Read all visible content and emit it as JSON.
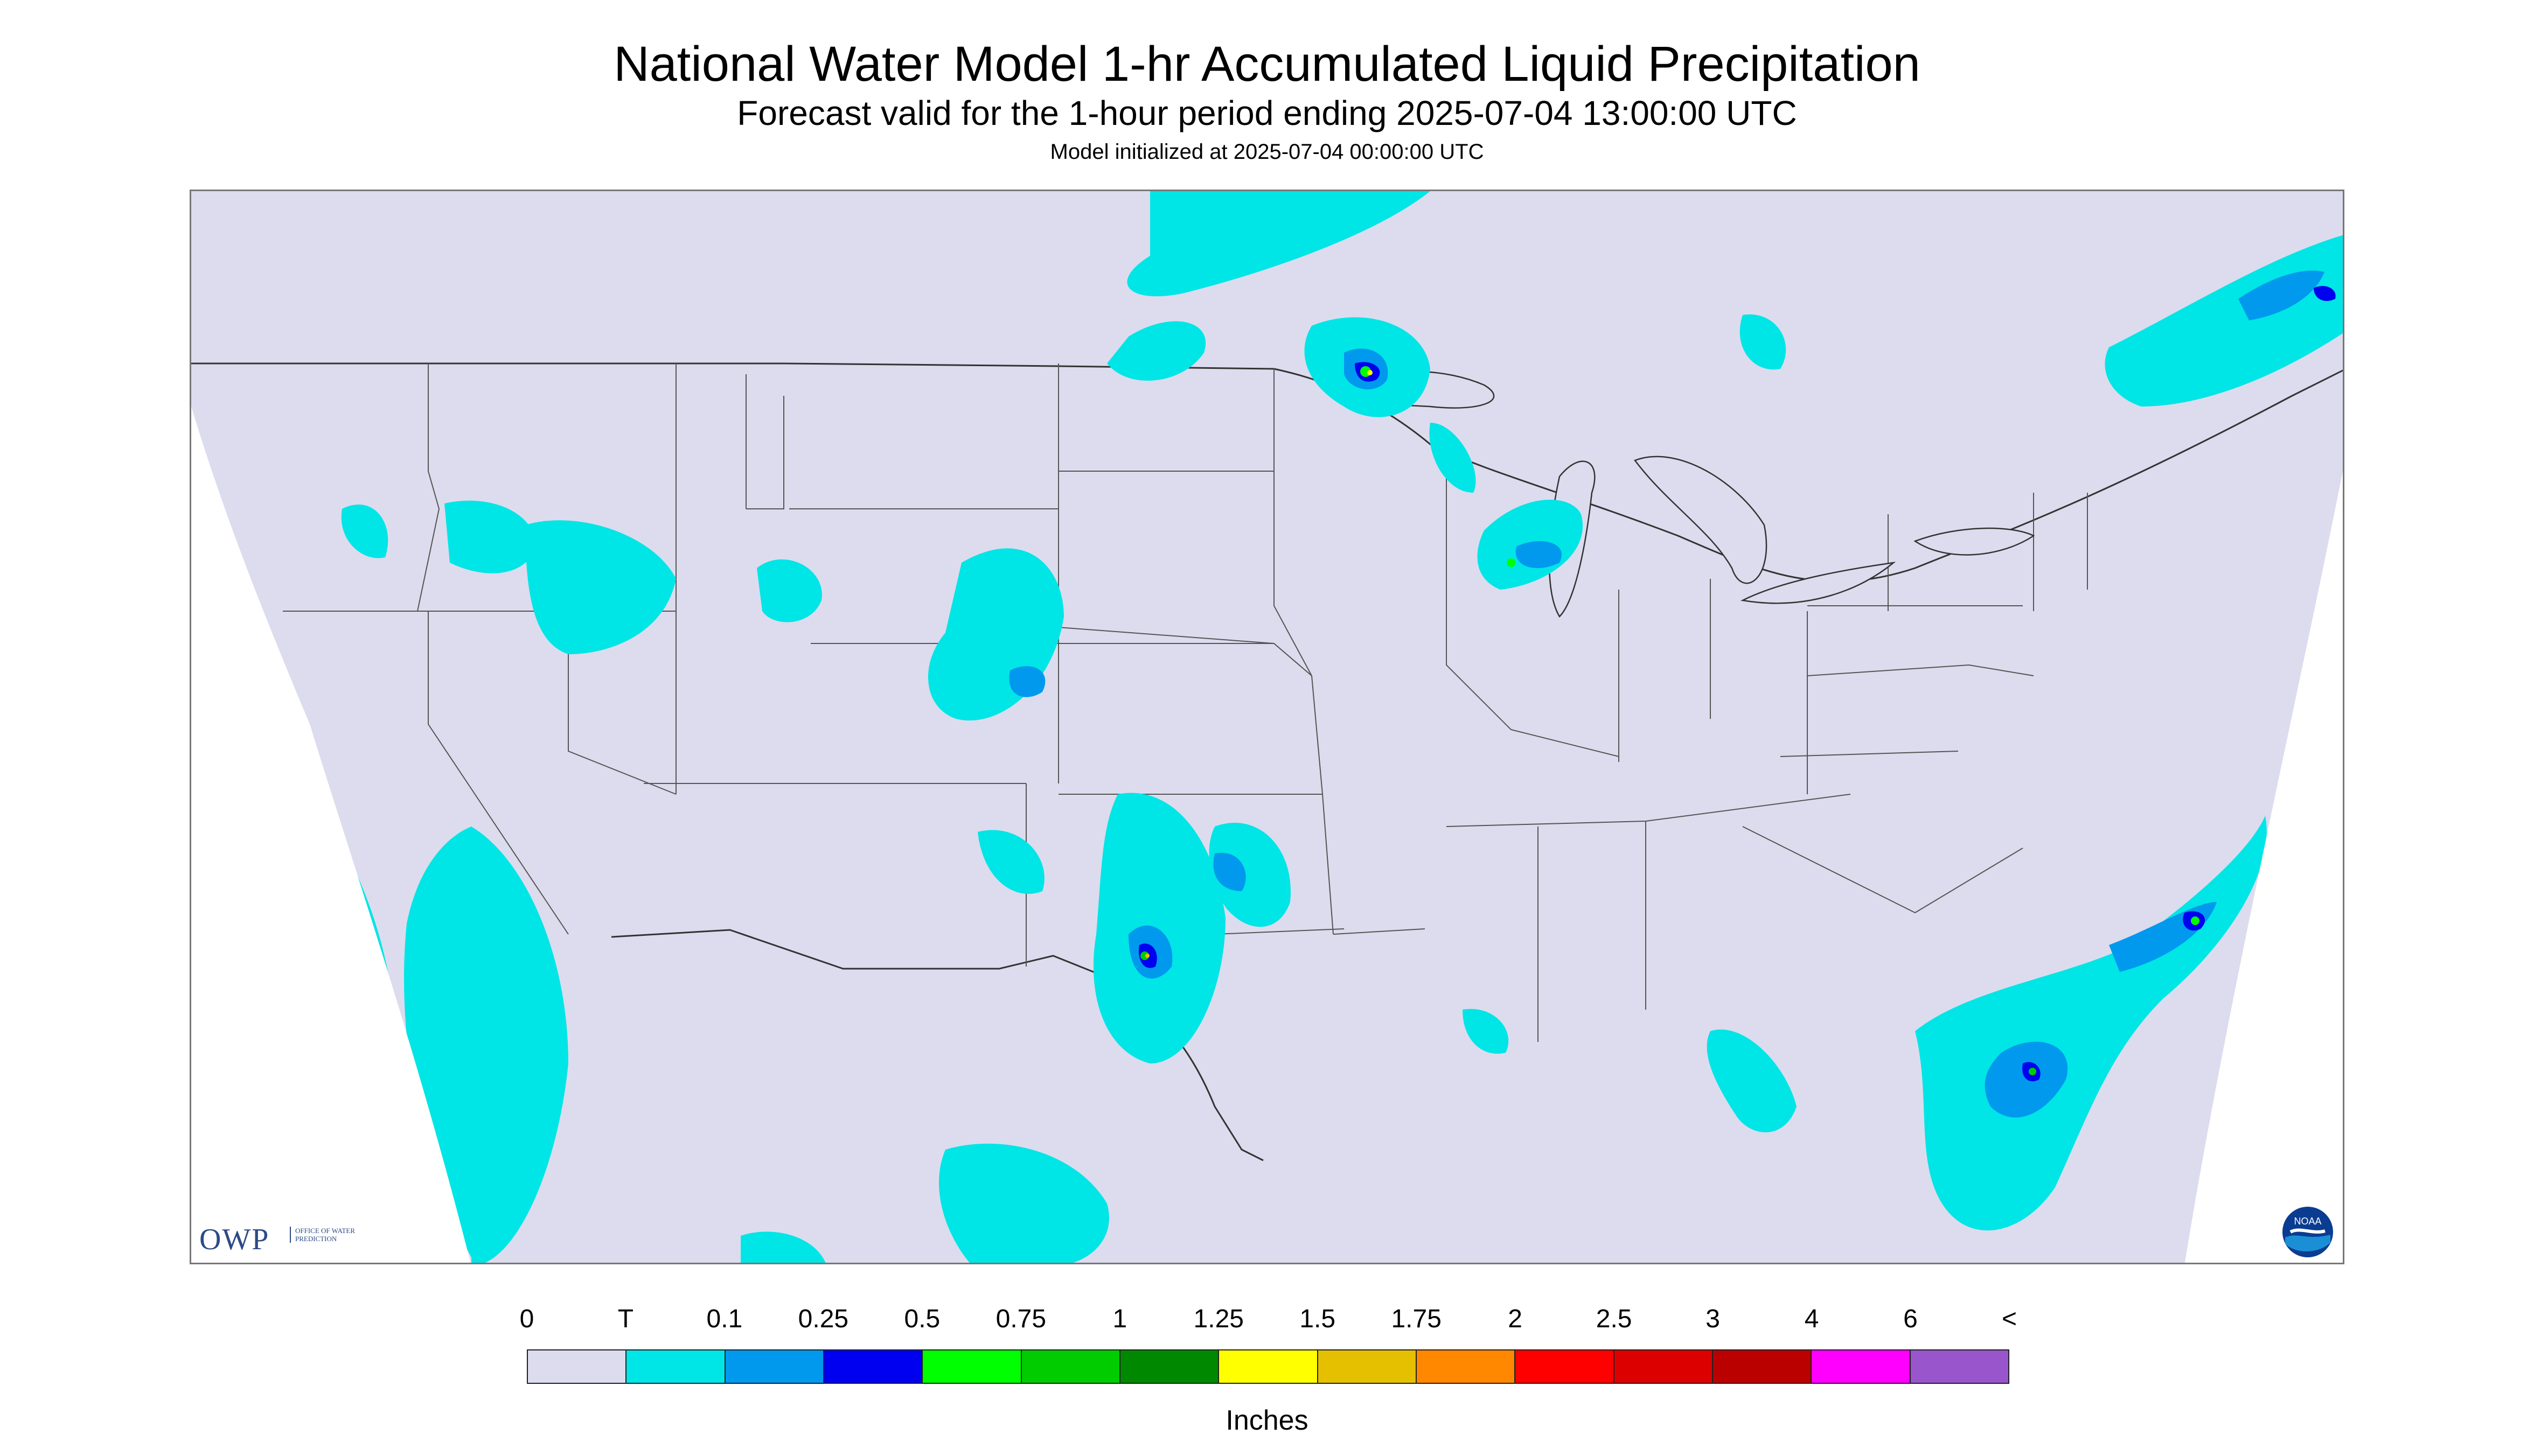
{
  "header": {
    "title": "National Water Model 1-hr Accumulated Liquid Precipitation",
    "subtitle": "Forecast valid for the 1-hour period ending 2025-07-04 13:00:00 UTC",
    "init": "Model initialized at 2025-07-04 00:00:00 UTC"
  },
  "map": {
    "background": "#dcdcee",
    "border_color": "#222222",
    "projection_edge": "#ffffff"
  },
  "logos": {
    "owp_mark": "OWP",
    "owp_text": "Office of Water Prediction",
    "noaa_text": "NOAA"
  },
  "legend": {
    "labels": [
      "0",
      "T",
      "0.1",
      "0.25",
      "0.5",
      "0.75",
      "1",
      "1.25",
      "1.5",
      "1.75",
      "2",
      "2.5",
      "3",
      "4",
      "6",
      "<"
    ],
    "colors": [
      "#dcdcee",
      "#00e5e5",
      "#0099ee",
      "#0000f0",
      "#00ff00",
      "#00cc00",
      "#008800",
      "#ffff00",
      "#e5c000",
      "#ff8800",
      "#ff0000",
      "#dd0000",
      "#bb0000",
      "#ff00ff",
      "#9955cc"
    ],
    "units": "Inches"
  }
}
